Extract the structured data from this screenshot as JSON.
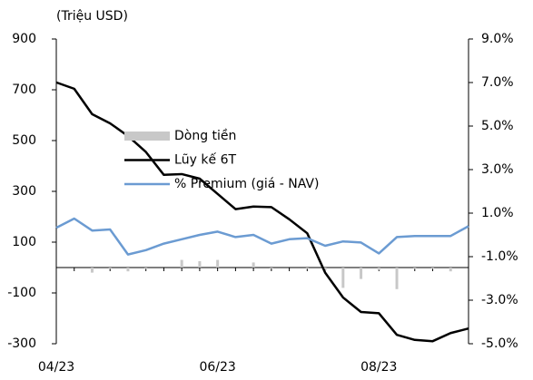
{
  "chart_data": {
    "type": "combo",
    "y_label": "(Triệu USD)",
    "categories": [
      "04/23",
      null,
      null,
      null,
      null,
      null,
      null,
      null,
      null,
      "06/23",
      null,
      null,
      null,
      null,
      null,
      null,
      null,
      null,
      "08/23",
      null,
      null,
      null,
      null,
      null
    ],
    "series": [
      {
        "name": "Dòng tiền",
        "type": "bar",
        "color": "#c8c8c8",
        "axis": "y",
        "values": [
          0,
          0,
          -20,
          -5,
          -15,
          -5,
          0,
          30,
          25,
          30,
          0,
          20,
          -3,
          0,
          -5,
          -10,
          -80,
          -45,
          -10,
          -85,
          -5,
          -5,
          -15,
          0
        ]
      },
      {
        "name": "Lũy kế 6T",
        "type": "line",
        "color": "#000000",
        "axis": "y",
        "values": [
          729,
          704,
          604,
          568,
          518,
          455,
          365,
          368,
          350,
          290,
          230,
          240,
          238,
          190,
          135,
          -20,
          -118,
          -175,
          -180,
          -265,
          -285,
          -290,
          -258,
          -240
        ]
      },
      {
        "name": "% Premium (giá - NAV)",
        "type": "line",
        "color": "#6b9bd2",
        "axis": "y2",
        "values": [
          0.33,
          0.75,
          0.2,
          0.25,
          -0.9,
          -0.7,
          -0.4,
          -0.2,
          0,
          0.15,
          -0.1,
          0,
          -0.4,
          -0.2,
          -0.15,
          -0.5,
          -0.3,
          -0.35,
          -0.85,
          -0.1,
          -0.05,
          -0.05,
          -0.05,
          0.4
        ]
      }
    ],
    "ylim": [
      -300,
      900
    ],
    "yticks": [
      -300,
      -100,
      100,
      300,
      500,
      700,
      900
    ],
    "y2lim": [
      -5,
      9
    ],
    "y2ticks": [
      {
        "value": -5,
        "label": "-5.0%"
      },
      {
        "value": -3,
        "label": "-3.0%"
      },
      {
        "value": -1,
        "label": "-1.0%"
      },
      {
        "value": 1,
        "label": "1.0%"
      },
      {
        "value": 3,
        "label": "3.0%"
      },
      {
        "value": 5,
        "label": "5.0%"
      },
      {
        "value": 7,
        "label": "7.0%"
      },
      {
        "value": 9,
        "label": "9.0%"
      }
    ],
    "legend": "center"
  }
}
